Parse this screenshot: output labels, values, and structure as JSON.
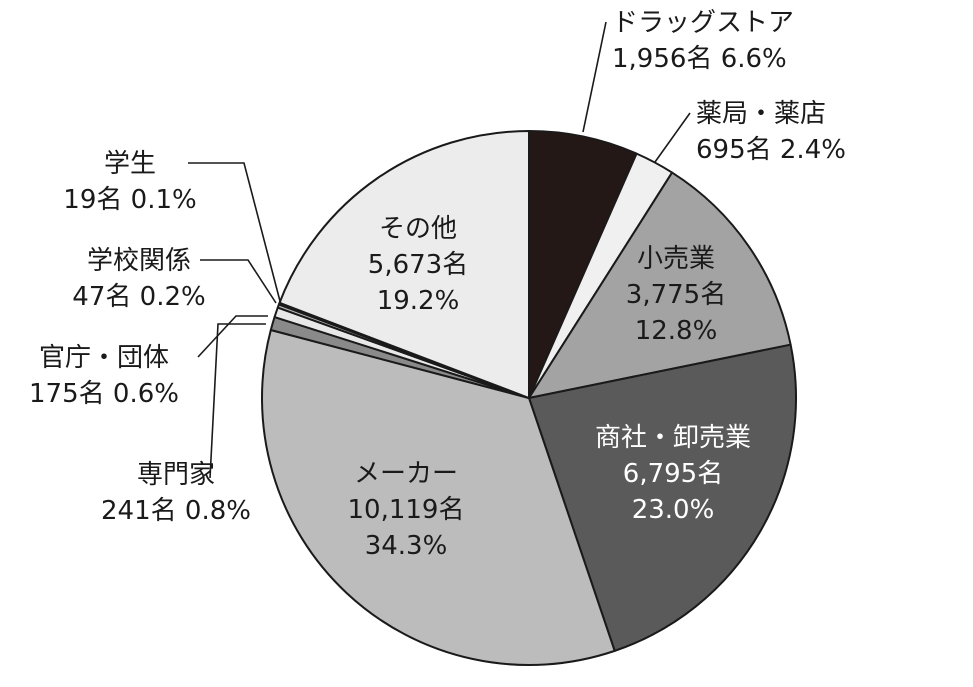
{
  "chart_data": {
    "type": "pie",
    "title": "",
    "start_angle_deg": 0,
    "direction": "clockwise",
    "slices": [
      {
        "label": "ドラッグストア",
        "count": 1956,
        "count_text": "1,956名",
        "percent": 6.6,
        "percent_text": "6.6%",
        "color": "#231815"
      },
      {
        "label": "薬局・薬店",
        "count": 695,
        "count_text": "695名",
        "percent": 2.4,
        "percent_text": "2.4%",
        "color": "#f0f0f0"
      },
      {
        "label": "小売業",
        "count": 3775,
        "count_text": "3,775名",
        "percent": 12.8,
        "percent_text": "12.8%",
        "color": "#a3a3a3"
      },
      {
        "label": "商社・卸売業",
        "count": 6795,
        "count_text": "6,795名",
        "percent": 23.0,
        "percent_text": "23.0%",
        "color": "#5a5a5a"
      },
      {
        "label": "メーカー",
        "count": 10119,
        "count_text": "10,119名",
        "percent": 34.3,
        "percent_text": "34.3%",
        "color": "#bcbcbc"
      },
      {
        "label": "専門家",
        "count": 241,
        "count_text": "241名",
        "percent": 0.8,
        "percent_text": "0.8%",
        "color": "#8a8a8a"
      },
      {
        "label": "官庁・団体",
        "count": 175,
        "count_text": "175名",
        "percent": 0.6,
        "percent_text": "0.6%",
        "color": "#e8e8e8"
      },
      {
        "label": "学校関係",
        "count": 47,
        "count_text": "47名",
        "percent": 0.2,
        "percent_text": "0.2%",
        "color": "#bcbcbc"
      },
      {
        "label": "学生",
        "count": 19,
        "count_text": "19名",
        "percent": 0.1,
        "percent_text": "0.1%",
        "color": "#ffffff"
      },
      {
        "label": "その他",
        "count": 5673,
        "count_text": "5,673名",
        "percent": 19.2,
        "percent_text": "19.2%",
        "color": "#ececec"
      }
    ]
  }
}
